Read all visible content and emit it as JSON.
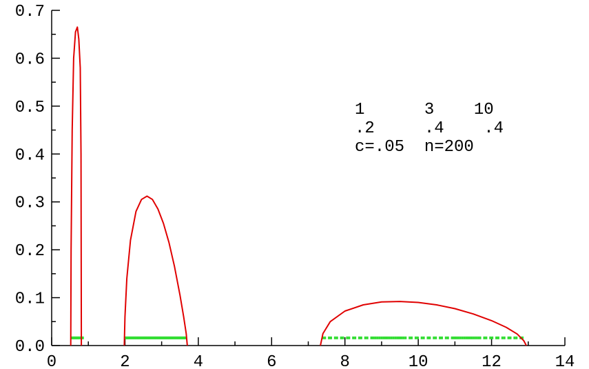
{
  "chart_data": {
    "type": "line",
    "xlim": [
      0,
      14
    ],
    "ylim": [
      0,
      0.7
    ],
    "x_ticks": [
      "0",
      "2",
      "4",
      "6",
      "8",
      "10",
      "12",
      "14"
    ],
    "y_ticks": [
      "0.0",
      "0.1",
      "0.2",
      "0.3",
      "0.4",
      "0.5",
      "0.6",
      "0.7"
    ],
    "annotation_lines": [
      "1      3    10",
      ".2     .4    .4",
      "c=.05  n=200"
    ],
    "colors": {
      "density": "#e00000",
      "eigenvalues": "#33dd33"
    },
    "series": [
      {
        "x": [
          0.52,
          0.53,
          0.56,
          0.6,
          0.65,
          0.7,
          0.74,
          0.78,
          0.8,
          0.81
        ],
        "y": [
          0,
          0.2,
          0.45,
          0.6,
          0.655,
          0.665,
          0.64,
          0.58,
          0.4,
          0
        ]
      },
      {
        "x": [
          1.98,
          2.0,
          2.05,
          2.15,
          2.3,
          2.45,
          2.6,
          2.75,
          2.9,
          3.05,
          3.2,
          3.35,
          3.5,
          3.6,
          3.67,
          3.7
        ],
        "y": [
          0,
          0.06,
          0.14,
          0.22,
          0.28,
          0.305,
          0.312,
          0.305,
          0.285,
          0.255,
          0.215,
          0.165,
          0.105,
          0.06,
          0.025,
          0
        ]
      },
      {
        "x": [
          7.33,
          7.4,
          7.6,
          8.0,
          8.5,
          9.0,
          9.5,
          10.0,
          10.5,
          11.0,
          11.5,
          12.0,
          12.4,
          12.7,
          12.88,
          12.95
        ],
        "y": [
          0,
          0.025,
          0.05,
          0.072,
          0.085,
          0.091,
          0.092,
          0.09,
          0.085,
          0.077,
          0.066,
          0.052,
          0.038,
          0.024,
          0.01,
          0
        ]
      }
    ],
    "eigenvalue_clusters": [
      {
        "from": 0.55,
        "to": 0.85,
        "y": 0.016
      },
      {
        "from": 2.0,
        "to": 3.65,
        "y": 0.016
      },
      {
        "from": 7.4,
        "to": 12.95,
        "y": 0.016,
        "sparse": true
      }
    ]
  }
}
